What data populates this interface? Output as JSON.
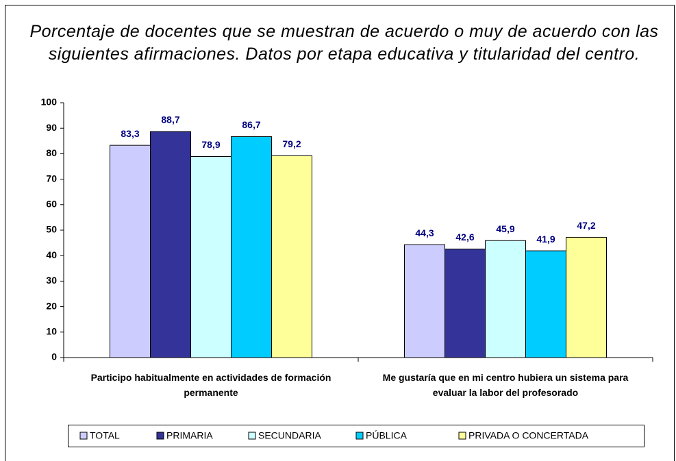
{
  "chart_data": {
    "type": "bar",
    "title": "Porcentaje de docentes que se muestran de acuerdo o muy de acuerdo con las siguientes afirmaciones. Datos por etapa educativa y titularidad del centro.",
    "categories": [
      "Participo habitualmente en actividades de formación permanente",
      "Me gustaría que en mi centro hubiera un sistema para evaluar la labor del profesorado"
    ],
    "series": [
      {
        "name": "TOTAL",
        "color": "#ccccff",
        "values": [
          83.3,
          44.3
        ],
        "value_labels": [
          "83,3",
          "44,3"
        ]
      },
      {
        "name": "PRIMARIA",
        "color": "#333399",
        "values": [
          88.7,
          42.6
        ],
        "value_labels": [
          "88,7",
          "42,6"
        ]
      },
      {
        "name": "SECUNDARIA",
        "color": "#ccffff",
        "values": [
          78.9,
          45.9
        ],
        "value_labels": [
          "78,9",
          "45,9"
        ]
      },
      {
        "name": "PÚBLICA",
        "color": "#00ccff",
        "values": [
          86.7,
          41.9
        ],
        "value_labels": [
          "86,7",
          "41,9"
        ]
      },
      {
        "name": "PRIVADA O CONCERTADA",
        "color": "#ffff99",
        "values": [
          79.2,
          47.2
        ],
        "value_labels": [
          "79,2",
          "47,2"
        ]
      }
    ],
    "ylim": [
      0,
      100
    ],
    "yticks": [
      0,
      10,
      20,
      30,
      40,
      50,
      60,
      70,
      80,
      90,
      100
    ],
    "legend": "bottom"
  }
}
